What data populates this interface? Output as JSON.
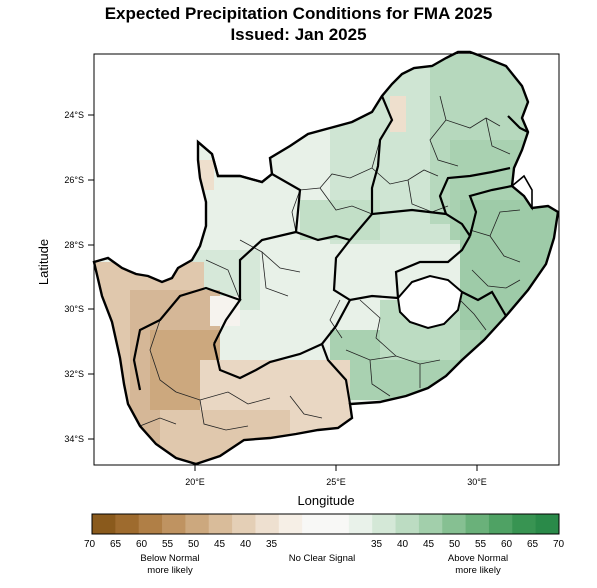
{
  "title": "Expected Precipitation Conditions for FMA 2025",
  "subtitle": "Issued: Jan 2025",
  "axes": {
    "xlabel": "Longitude",
    "ylabel": "Latitude",
    "x_ticks": [
      "20°E",
      "25°E",
      "30°E"
    ],
    "y_ticks": [
      "24°S",
      "26°S",
      "28°S",
      "30°S",
      "32°S",
      "34°S"
    ]
  },
  "legend": {
    "below_colors": [
      "#8a5a1c",
      "#9e6b2e",
      "#b07f46",
      "#bf9361",
      "#cca87e",
      "#d9bc9a",
      "#e4cfb6",
      "#eee0d0",
      "#f6efe6"
    ],
    "neutral_color": "#f8f8f6",
    "above_colors": [
      "#e9f2ea",
      "#d4e8d7",
      "#bcdcc2",
      "#a2cfab",
      "#86c092",
      "#6ab17a",
      "#4fa264",
      "#389452",
      "#2a8a49"
    ],
    "below_labels": [
      "70",
      "65",
      "60",
      "55",
      "50",
      "45",
      "40",
      "35"
    ],
    "above_labels": [
      "35",
      "40",
      "45",
      "50",
      "55",
      "60",
      "65",
      "70"
    ],
    "below_caption_1": "Below Normal",
    "below_caption_2": "more likely",
    "neutral_caption": "No Clear Signal",
    "above_caption_1": "Above Normal",
    "above_caption_2": "more likely"
  }
}
